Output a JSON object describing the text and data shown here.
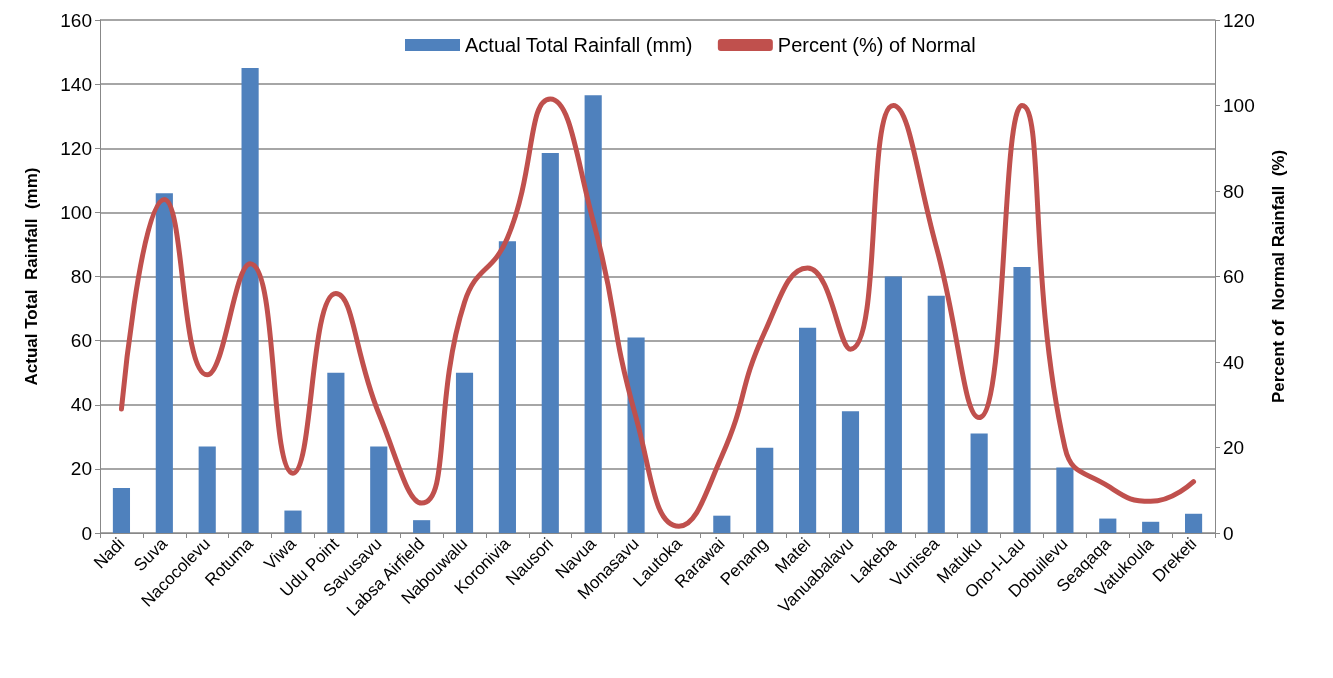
{
  "chart_data": {
    "type": "bar",
    "ylabel": "Actual Total  Rainfall  (mm)",
    "y2label": "Percent of  Normal Rainfall  (%)",
    "categories": [
      "Nadi",
      "Suva",
      "Nacocolevu",
      "Rotuma",
      "Viwa",
      "Udu Point",
      "Savusavu",
      "Labsa Airfield",
      "Nabouwalu",
      "Koronivia",
      "Nausori",
      "Navua",
      "Monasavu",
      "Lautoka",
      "Rarawai",
      "Penang",
      "Matei",
      "Vanuabalavu",
      "Lakeba",
      "Vunisea",
      "Matuku",
      "Ono-I-Lau",
      "Dobuilevu",
      "Seaqaqa",
      "Vatukoula",
      "Dreketi"
    ],
    "series": [
      {
        "name": "Actual Total Rainfall (mm)",
        "color": "#4f81bd",
        "values": [
          14,
          106,
          27,
          145,
          7,
          50,
          27,
          4,
          50,
          91,
          118.5,
          136.5,
          61,
          null,
          5.4,
          26.6,
          64,
          38,
          80,
          74,
          31,
          83,
          20.4,
          4.5,
          3.5,
          6
        ]
      },
      {
        "name": "Percent (%) of Normal",
        "type": "line",
        "axis": "y2",
        "color": "#c0504d",
        "values": [
          29,
          78,
          37,
          63,
          14,
          56,
          28,
          7,
          54,
          69,
          101.5,
          73,
          27,
          1.6,
          18,
          47,
          62,
          43,
          100,
          67,
          27,
          100,
          20,
          11,
          7.4,
          12
        ]
      }
    ],
    "ylim": [
      0,
      160
    ],
    "yticks": [
      0,
      20,
      40,
      60,
      80,
      100,
      120,
      140,
      160
    ],
    "y2lim": [
      0,
      120
    ],
    "y2ticks": [
      0,
      20,
      40,
      60,
      80,
      100,
      120
    ],
    "grid": "y",
    "legend": "top",
    "marker": "none",
    "line_style": "solid"
  }
}
